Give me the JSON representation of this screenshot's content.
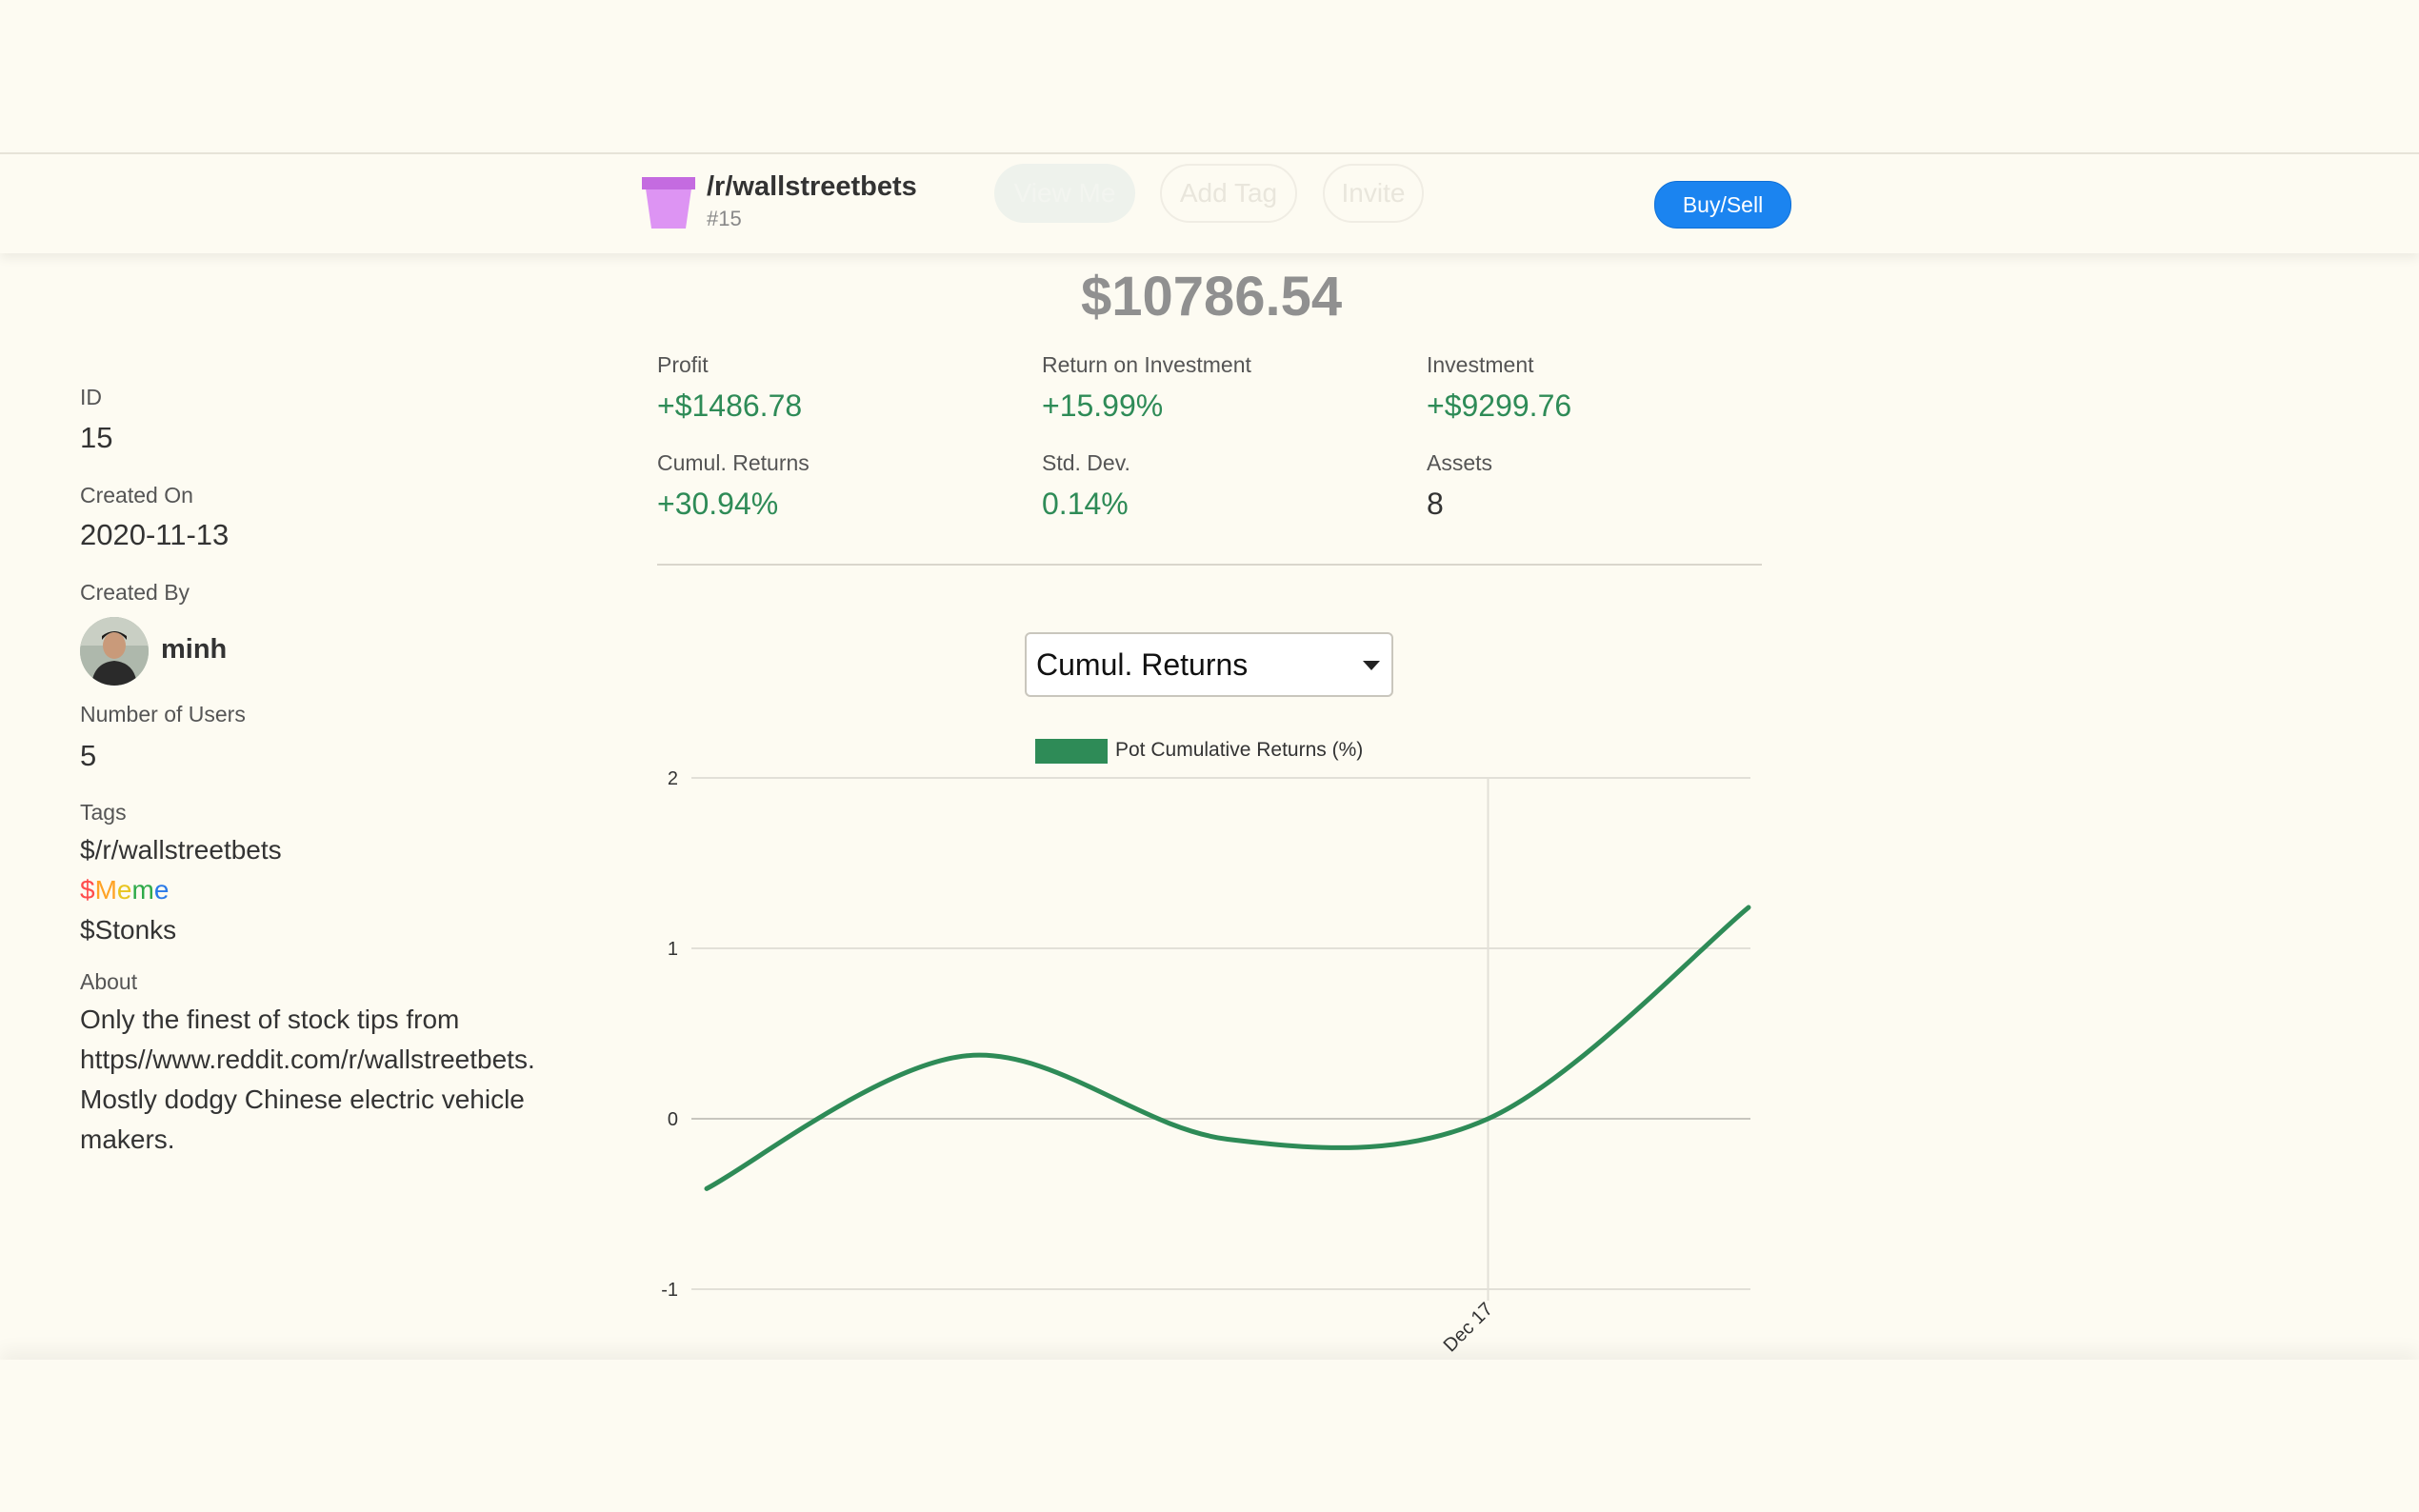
{
  "header": {
    "pot_name": "/r/wallstreetbets",
    "pot_number": "#15",
    "view_me_label": "View Me",
    "add_tag_label": "Add Tag",
    "invite_label": "Invite",
    "buy_sell_label": "Buy/Sell",
    "pot_icon_color": "#d98ef0"
  },
  "summary": {
    "total_value": "$10786.54",
    "stats": [
      {
        "label": "Profit",
        "value": "+$1486.78"
      },
      {
        "label": "Return on Investment",
        "value": "+15.99%"
      },
      {
        "label": "Investment",
        "value": "+$9299.76"
      },
      {
        "label": "Cumul. Returns",
        "value": "+30.94%"
      },
      {
        "label": "Std. Dev.",
        "value": "0.14%"
      },
      {
        "label": "Assets",
        "value": "8"
      }
    ]
  },
  "sidebar": {
    "id_label": "ID",
    "id_value": "15",
    "created_on_label": "Created On",
    "created_on_value": "2020-11-13",
    "created_by_label": "Created By",
    "created_by_user": "minh",
    "users_label": "Number of Users",
    "users_value": "5",
    "tags_label": "Tags",
    "tags": [
      "$/r/wallstreetbets",
      "$Meme",
      "$Stonks"
    ],
    "about_label": "About",
    "about_text": "Only the finest of stock tips from https//www.reddit.com/r/wallstreetbets. Mostly dodgy Chinese electric vehicle makers."
  },
  "chart_select": {
    "selected": "Cumul. Returns"
  },
  "chart_data": {
    "type": "line",
    "legend": "Pot Cumulative Returns (%)",
    "series_color": "#2e8b57",
    "x_tick_label": "Dec 17",
    "ylim": [
      -1,
      2
    ],
    "y_ticks": [
      -1,
      0,
      1,
      2
    ],
    "grid": true,
    "points": [
      {
        "x": 0,
        "y": -0.41
      },
      {
        "x": 1,
        "y": 0.37
      },
      {
        "x": 2,
        "y": -0.12
      },
      {
        "x": 3,
        "y": 0.0
      },
      {
        "x": 4,
        "y": 1.24
      }
    ]
  }
}
